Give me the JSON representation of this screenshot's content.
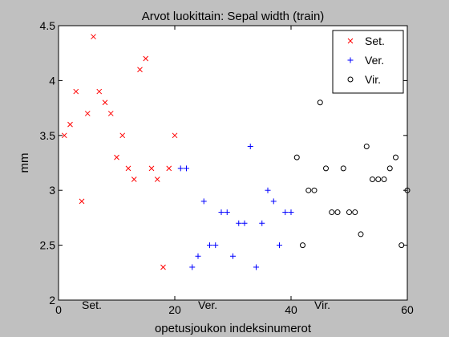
{
  "chart_data": {
    "type": "scatter",
    "title": "Arvot luokittain: Sepal width (train)",
    "xlabel": "opetusjoukon indeksinumerot",
    "ylabel": "mm",
    "xlim": [
      0,
      60
    ],
    "ylim": [
      2,
      4.5
    ],
    "xticks": [
      0,
      20,
      40,
      60
    ],
    "yticks": [
      2,
      2.5,
      3,
      3.5,
      4,
      4.5
    ],
    "grid": false,
    "legend_position": "top-right",
    "series": [
      {
        "name": "Set.",
        "marker": "x",
        "color": "#ff0000",
        "x": [
          1,
          2,
          3,
          4,
          5,
          6,
          7,
          8,
          9,
          10,
          11,
          12,
          13,
          14,
          15,
          16,
          17,
          18,
          19,
          20
        ],
        "y": [
          3.5,
          3.6,
          3.9,
          2.9,
          3.7,
          4.4,
          3.9,
          3.8,
          3.7,
          3.3,
          3.5,
          3.2,
          3.1,
          4.1,
          4.2,
          3.2,
          3.1,
          2.3,
          3.2,
          3.5
        ]
      },
      {
        "name": "Ver.",
        "marker": "+",
        "color": "#0000ff",
        "x": [
          21,
          22,
          23,
          24,
          25,
          26,
          27,
          28,
          29,
          30,
          31,
          32,
          33,
          34,
          35,
          36,
          37,
          38,
          39,
          40
        ],
        "y": [
          3.2,
          3.2,
          2.3,
          2.4,
          2.9,
          2.5,
          2.5,
          2.8,
          2.8,
          2.4,
          2.7,
          2.7,
          3.4,
          2.3,
          2.7,
          3.0,
          2.9,
          2.5,
          2.8,
          2.8
        ]
      },
      {
        "name": "Vir.",
        "marker": "o",
        "color": "#000000",
        "x": [
          41,
          42,
          43,
          44,
          45,
          46,
          47,
          48,
          49,
          50,
          51,
          52,
          53,
          54,
          55,
          56,
          57,
          58,
          59,
          60
        ],
        "y": [
          3.3,
          2.5,
          3.0,
          3.0,
          3.8,
          3.2,
          2.8,
          2.8,
          3.2,
          2.8,
          2.8,
          2.6,
          3.4,
          3.1,
          3.1,
          3.1,
          3.2,
          3.3,
          2.5,
          3.0
        ]
      }
    ],
    "annotations": [
      {
        "text": "Set.",
        "x": 4,
        "y": 1.95
      },
      {
        "text": "Ver.",
        "x": 24,
        "y": 1.95
      },
      {
        "text": "Vir.",
        "x": 44,
        "y": 1.95
      }
    ]
  }
}
